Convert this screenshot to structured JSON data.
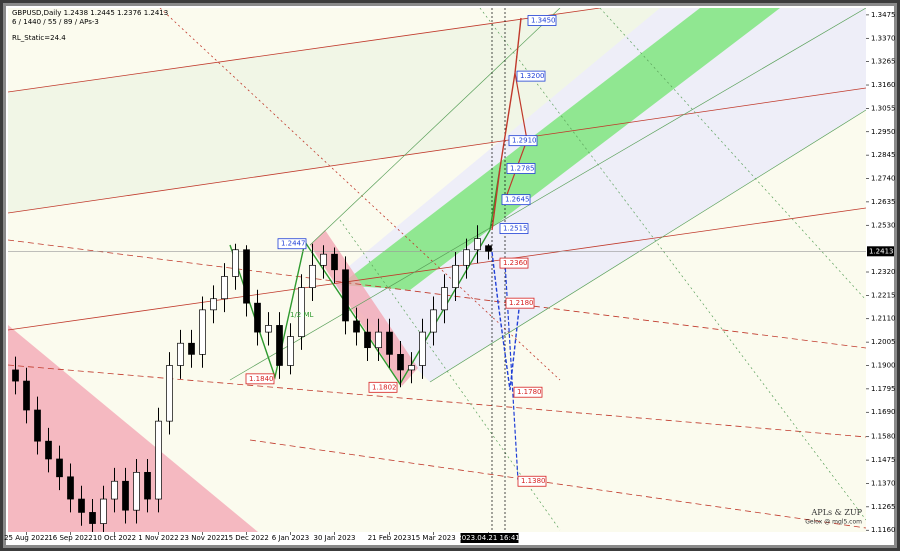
{
  "chart_data": {
    "type": "candlestick",
    "title": "GBPUSD,Daily  1.2438 1.2445 1.2376 1.2413",
    "indicator_params": "6 / 1440 / 55 / 89 / APs-3",
    "indicator_note": "RL_Static=24.4",
    "pattern_label": "1/2 ML",
    "watermark": [
      "APLs & ZUP",
      "Gelox @ mql5.com"
    ],
    "categories": [
      null,
      "25 Aug 2022",
      null,
      null,
      null,
      "16 Sep 2022",
      null,
      null,
      null,
      "10 Oct 2022",
      null,
      null,
      null,
      "1 Nov 2022",
      null,
      null,
      null,
      "23 Nov 2022",
      null,
      null,
      null,
      "15 Dec 2022",
      null,
      null,
      null,
      "6 Jan 2023",
      null,
      null,
      null,
      "30 Jan 2023",
      null,
      null,
      null,
      null,
      "21 Feb 2023",
      null,
      null,
      null,
      "15 Mar 2023",
      null,
      null,
      null,
      null,
      "2023.04.21 16:41"
    ],
    "open": [
      1.188,
      1.183,
      1.17,
      1.156,
      1.148,
      1.14,
      1.13,
      1.124,
      1.119,
      1.13,
      1.138,
      1.125,
      1.142,
      1.13,
      1.165,
      1.19,
      1.2,
      1.195,
      1.215,
      1.22,
      1.23,
      1.242,
      1.218,
      1.205,
      1.208,
      1.19,
      1.203,
      1.225,
      1.235,
      1.24,
      1.233,
      1.21,
      1.205,
      1.198,
      1.205,
      1.195,
      1.188,
      1.19,
      1.205,
      1.215,
      1.225,
      1.235,
      1.242,
      1.2438
    ],
    "high": [
      1.194,
      1.189,
      1.176,
      1.162,
      1.154,
      1.146,
      1.136,
      1.13,
      1.136,
      1.144,
      1.144,
      1.148,
      1.148,
      1.171,
      1.196,
      1.206,
      1.206,
      1.221,
      1.226,
      1.236,
      1.2447,
      1.244,
      1.224,
      1.214,
      1.214,
      1.209,
      1.231,
      1.2447,
      1.244,
      1.243,
      1.239,
      1.216,
      1.211,
      1.211,
      1.211,
      1.201,
      1.196,
      1.211,
      1.221,
      1.231,
      1.241,
      1.247,
      1.253,
      1.2445
    ],
    "low": [
      1.177,
      1.164,
      1.15,
      1.142,
      1.134,
      1.124,
      1.118,
      1.113,
      1.113,
      1.124,
      1.119,
      1.119,
      1.124,
      1.124,
      1.159,
      1.184,
      1.189,
      1.189,
      1.209,
      1.214,
      1.224,
      1.212,
      1.199,
      1.199,
      1.184,
      1.186,
      1.197,
      1.219,
      1.229,
      1.227,
      1.204,
      1.199,
      1.192,
      1.192,
      1.189,
      1.1802,
      1.182,
      1.184,
      1.199,
      1.209,
      1.219,
      1.229,
      1.236,
      1.2376
    ],
    "close": [
      1.183,
      1.17,
      1.156,
      1.148,
      1.14,
      1.13,
      1.124,
      1.119,
      1.13,
      1.138,
      1.125,
      1.142,
      1.13,
      1.165,
      1.19,
      1.2,
      1.195,
      1.215,
      1.22,
      1.23,
      1.242,
      1.218,
      1.205,
      1.208,
      1.19,
      1.203,
      1.225,
      1.235,
      1.24,
      1.233,
      1.21,
      1.205,
      1.198,
      1.205,
      1.195,
      1.188,
      1.19,
      1.205,
      1.215,
      1.225,
      1.235,
      1.242,
      1.247,
      1.2413
    ],
    "up_color": "#ffffff",
    "down_color": "#000000",
    "ylim": [
      1.1152,
      1.3506
    ],
    "yticks": [
      1.3475,
      {
        "value": 1.337,
        "label": "1.3370"
      },
      1.3265,
      {
        "value": 1.316,
        "label": "1.3160"
      },
      1.3055,
      {
        "value": 1.295,
        "label": "1.2950"
      },
      1.2845,
      {
        "value": 1.274,
        "label": "1.2740"
      },
      1.2635,
      {
        "value": 1.253,
        "label": "1.2530"
      },
      {
        "value": 1.232,
        "label": "1.2320"
      },
      1.2215,
      {
        "value": 1.211,
        "label": "1.2110"
      },
      1.2005,
      {
        "value": 1.19,
        "label": "1.1900"
      },
      1.1795,
      {
        "value": 1.169,
        "label": "1.1690"
      },
      {
        "value": 1.158,
        "label": "1.1580"
      },
      1.1475,
      {
        "value": 1.137,
        "label": "1.1370"
      },
      1.1265,
      {
        "value": 1.116,
        "label": "1.1160"
      }
    ],
    "current_price": 1.2413,
    "levels": [
      {
        "value": 1.345,
        "label": "1.3450",
        "color": "#1f3fd6"
      },
      {
        "value": 1.32,
        "label": "1.3200",
        "color": "#1f3fd6"
      },
      {
        "value": 1.291,
        "label": "1.2910",
        "color": "#1f3fd6"
      },
      {
        "value": 1.2785,
        "label": "1.2785",
        "color": "#1f3fd6"
      },
      {
        "value": 1.2645,
        "label": "1.2645",
        "color": "#1f3fd6"
      },
      {
        "value": 1.2515,
        "label": "1.2515",
        "color": "#1f3fd6"
      },
      {
        "value": 1.2447,
        "label": "1.2447",
        "color": "#1f3fd6"
      },
      {
        "value": 1.236,
        "label": "1.2360",
        "color": "#d62020"
      },
      {
        "value": 1.218,
        "label": "1.2180",
        "color": "#d62020"
      },
      {
        "value": 1.184,
        "label": "1.1840",
        "color": "#d62020"
      },
      {
        "value": 1.1802,
        "label": "1.1802",
        "color": "#d62020"
      },
      {
        "value": 1.178,
        "label": "1.1780",
        "color": "#d62020"
      },
      {
        "value": 1.138,
        "label": "1.1380",
        "color": "#d62020"
      }
    ]
  }
}
